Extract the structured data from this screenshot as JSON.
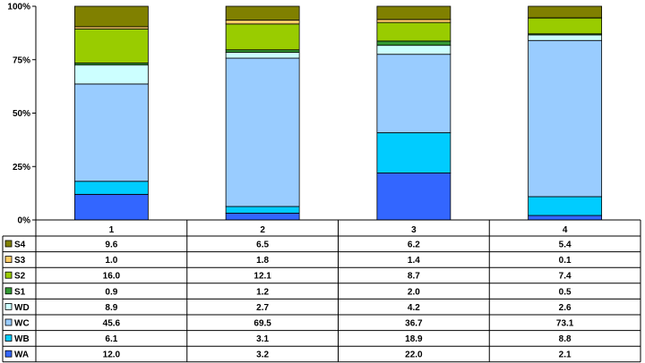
{
  "chart_data": {
    "type": "bar",
    "stacked": "percent",
    "categories": [
      "1",
      "2",
      "3",
      "4"
    ],
    "y_ticks": [
      "0%",
      "25%",
      "50%",
      "75%",
      "100%"
    ],
    "ylim": [
      0,
      100
    ],
    "legend_placement": "data table rows at bottom",
    "series": [
      {
        "name": "WA",
        "color": "#3366ff",
        "values": [
          "12.0",
          "3.2",
          "22.0",
          "2.1"
        ]
      },
      {
        "name": "WB",
        "color": "#00ccff",
        "values": [
          "6.1",
          "3.1",
          "18.9",
          "8.8"
        ]
      },
      {
        "name": "WC",
        "color": "#99ccff",
        "values": [
          "45.6",
          "69.5",
          "36.7",
          "73.1"
        ]
      },
      {
        "name": "WD",
        "color": "#ccffff",
        "values": [
          "8.9",
          "2.7",
          "4.2",
          "2.6"
        ]
      },
      {
        "name": "S1",
        "color": "#339933",
        "values": [
          "0.9",
          "1.2",
          "2.0",
          "0.5"
        ]
      },
      {
        "name": "S2",
        "color": "#99cc00",
        "values": [
          "16.0",
          "12.1",
          "8.7",
          "7.4"
        ]
      },
      {
        "name": "S3",
        "color": "#ffcc66",
        "values": [
          "1.0",
          "1.8",
          "1.4",
          "0.1"
        ]
      },
      {
        "name": "S4",
        "color": "#808000",
        "values": [
          "9.6",
          "6.5",
          "6.2",
          "5.4"
        ]
      }
    ]
  }
}
